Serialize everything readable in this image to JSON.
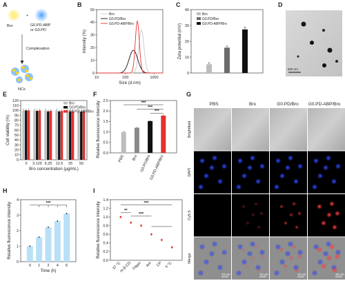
{
  "panel_labels": {
    "A": "A",
    "B": "B",
    "C": "C",
    "D": "D",
    "E": "E",
    "F": "F",
    "G": "G",
    "H": "H",
    "I": "I"
  },
  "panelA": {
    "bro": "Bro",
    "plus": "+",
    "carrier_line1": "G0.PD-ABP",
    "carrier_line2": "or G0.PD",
    "step": "Complexation",
    "product": "NCs"
  },
  "panelD": {
    "scale_label": "500 nm"
  },
  "panelG": {
    "columns": [
      "PBS",
      "Bro",
      "G0.PD/Bro",
      "G0.PD-ABP/Bro"
    ],
    "rows": [
      "Brightfield",
      "DAPI",
      "Cy5.5",
      "Merge"
    ],
    "scale_label": "10 μm"
  },
  "chart_data": [
    {
      "id": "B",
      "type": "line",
      "xlabel": "Size (d.nm)",
      "ylabel": "Intensity (%)",
      "xscale": "log",
      "xlim": [
        10,
        2000
      ],
      "ylim": [
        0,
        50
      ],
      "xticks": [
        10,
        100,
        1000
      ],
      "yticks": [
        0,
        10,
        20,
        30,
        40,
        50
      ],
      "series": [
        {
          "name": "Bro",
          "color": "#c8c8c8",
          "peak": 360,
          "height": 34,
          "width": 0.09
        },
        {
          "name": "G0.PD/Bro",
          "color": "#111111",
          "peak": 190,
          "height": 18,
          "width": 0.15
        },
        {
          "name": "G0.PD-ABP/Bro",
          "color": "#e53030",
          "peak": 260,
          "height": 41,
          "width": 0.07
        }
      ]
    },
    {
      "id": "C",
      "type": "bar",
      "ylabel": "Zeta potential (mV)",
      "ylim": [
        0,
        40
      ],
      "yticks": [
        0,
        10,
        20,
        30,
        40
      ],
      "categories": [
        "Bro",
        "G0.PD/Bro",
        "G0.PD-ABP/Bro"
      ],
      "values": [
        5.5,
        16,
        27.5
      ],
      "errors": [
        1,
        1,
        1.5
      ],
      "colors": [
        "#bdbdbd",
        "#6b6b6b",
        "#111111"
      ]
    },
    {
      "id": "E",
      "type": "bar",
      "xlabel": "Bro concentration (μg/mL)",
      "ylabel": "Cell viability (%)",
      "ylim": [
        0,
        120
      ],
      "yticks": [
        0,
        10,
        20,
        30,
        40,
        50,
        60,
        70,
        80,
        90,
        100,
        110,
        120
      ],
      "categories": [
        "0",
        "3.125",
        "6.25",
        "12.5",
        "25",
        "50"
      ],
      "series": [
        {
          "name": "Bro",
          "color": "#bdbdbd",
          "values": [
            100,
            100,
            100,
            100,
            100,
            99
          ]
        },
        {
          "name": "G0.PD/Bro",
          "color": "#111111",
          "values": [
            100,
            99,
            98,
            98,
            98,
            97
          ]
        },
        {
          "name": "G0.PD-ABP/Bro",
          "color": "#e53030",
          "values": [
            100,
            100,
            99,
            99,
            98,
            98
          ]
        }
      ]
    },
    {
      "id": "F",
      "type": "bar",
      "ylabel": "Relative fluorescence intensity",
      "ylim": [
        0,
        2.5
      ],
      "yticks": [
        0.0,
        0.5,
        1.0,
        1.5,
        2.0,
        2.5
      ],
      "categories": [
        "PBS",
        "Bro",
        "G0.PD/Bro",
        "G0.PD-ABP/Bro"
      ],
      "values": [
        1.0,
        1.2,
        1.52,
        1.78
      ],
      "colors": [
        "#bdbdbd",
        "#8a8a8a",
        "#111111",
        "#e53030"
      ],
      "significance": "***"
    },
    {
      "id": "H",
      "type": "bar",
      "xlabel": "Time (h)",
      "ylabel": "Relative fluorescence intensity",
      "ylim": [
        0,
        4
      ],
      "yticks": [
        0,
        1,
        2,
        3,
        4
      ],
      "categories": [
        "0",
        "1",
        "2",
        "4",
        "6"
      ],
      "values": [
        1.0,
        1.58,
        2.22,
        2.62,
        3.1
      ],
      "color": "#b9e0f7",
      "significance": "***"
    },
    {
      "id": "I",
      "type": "scatter",
      "ylabel": "Relative fluorescence intensity",
      "ylim": [
        0,
        1.4
      ],
      "yticks": [
        0.0,
        0.2,
        0.4,
        0.6,
        0.8,
        1.0,
        1.2,
        1.4
      ],
      "categories": [
        "37 °C",
        "m-β-CD",
        "Filipin",
        "Am",
        "CP",
        "4 °C"
      ],
      "values": [
        1.0,
        0.87,
        0.8,
        0.6,
        0.47,
        0.3
      ],
      "color": "#e53030",
      "significance": [
        "**",
        "***",
        "***"
      ]
    }
  ]
}
